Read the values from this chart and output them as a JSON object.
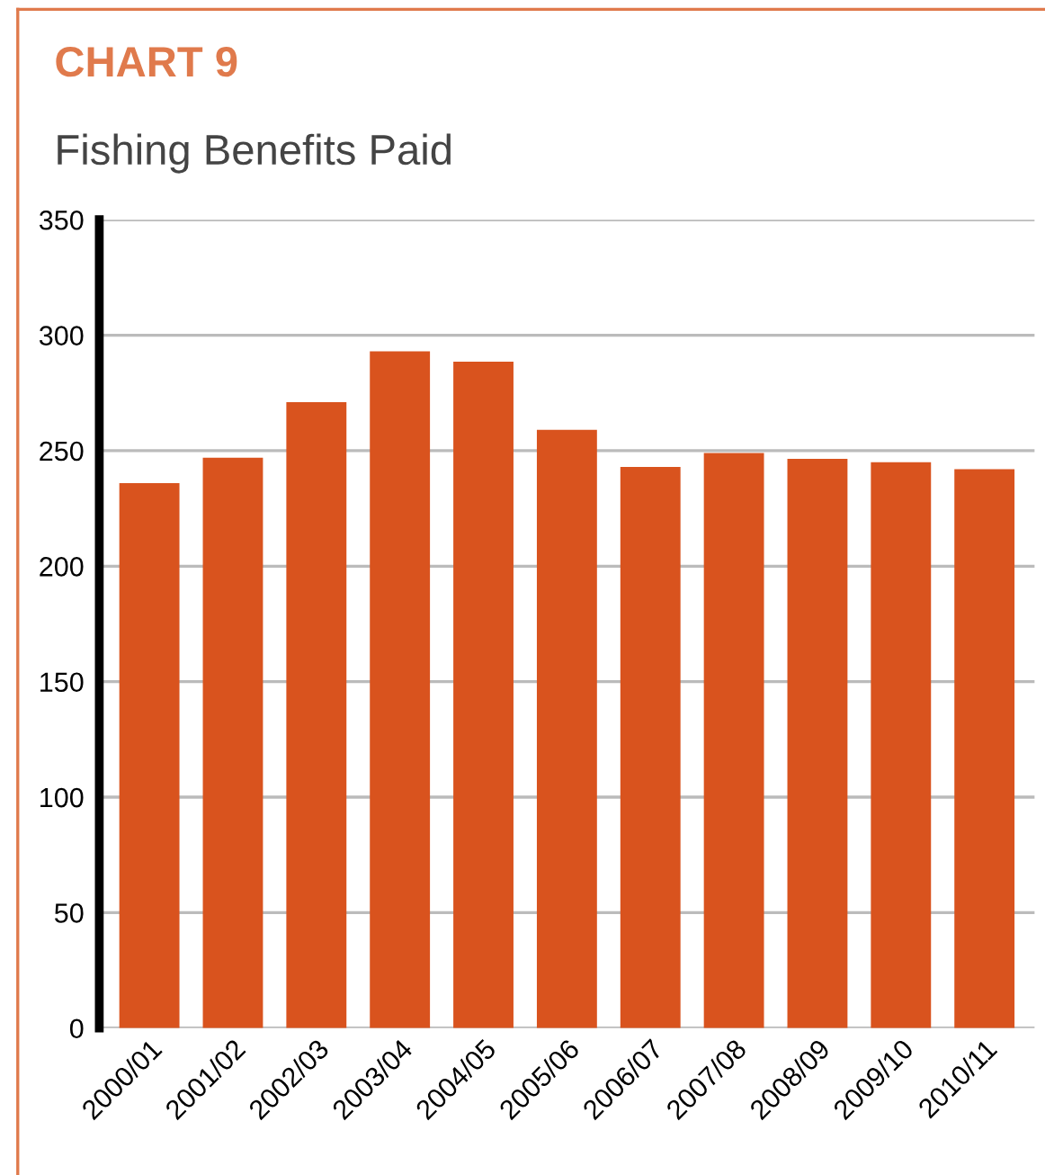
{
  "chart_data": {
    "type": "bar",
    "title": "CHART 9",
    "subtitle": "Fishing Benefits Paid",
    "categories": [
      "2000/01",
      "2001/02",
      "2002/03",
      "2003/04",
      "2004/05",
      "2005/06",
      "2006/07",
      "2007/08",
      "2008/09",
      "2009/10",
      "2010/11"
    ],
    "values": [
      236,
      247,
      271,
      293,
      288.5,
      259,
      243,
      249,
      246.5,
      245,
      242
    ],
    "color": "#d9531e",
    "ylim": [
      0,
      350
    ],
    "yticks": [
      0,
      50,
      100,
      150,
      200,
      250,
      300,
      350
    ],
    "grid": "y"
  }
}
